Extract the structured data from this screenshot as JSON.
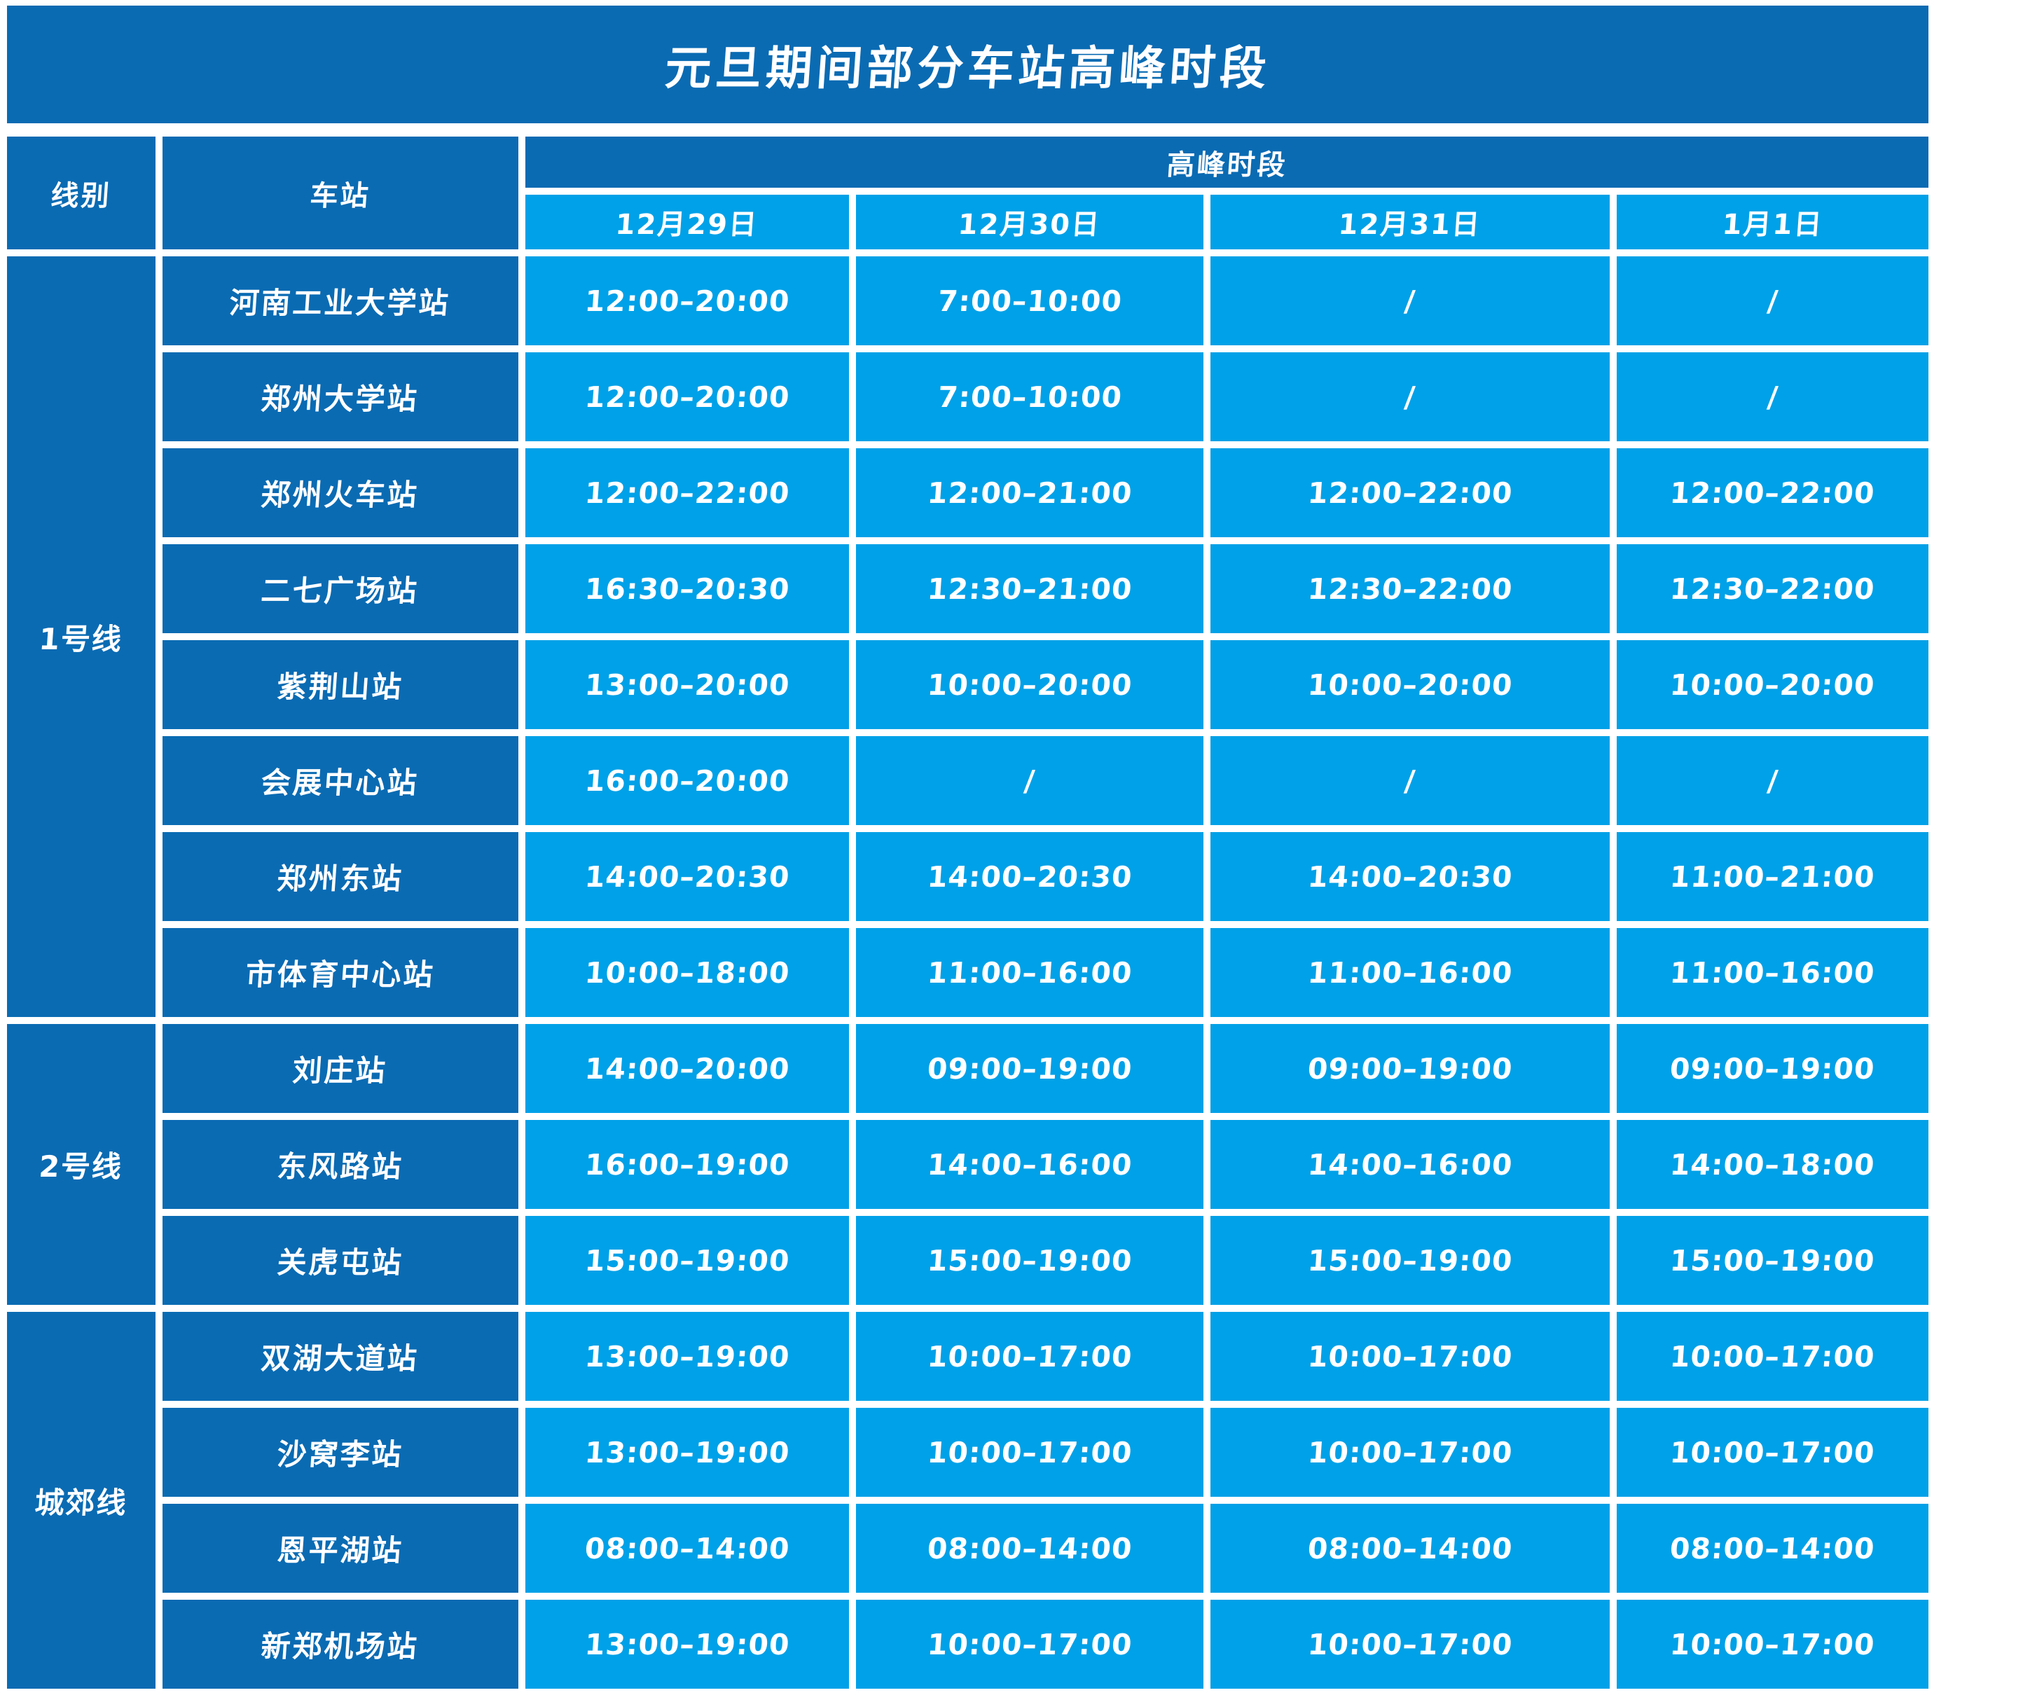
{
  "colors": {
    "dark_blue": "#0a6bb3",
    "light_blue": "#00a1e8",
    "text": "#ffffff",
    "background": "#ffffff"
  },
  "chart_data": {
    "type": "table",
    "title": "元旦期间部分车站高峰时段",
    "header": {
      "line": "线别",
      "station": "车站",
      "peak": "高峰时段",
      "dates": [
        "12月29日",
        "12月30日",
        "12月31日",
        "1月1日"
      ]
    },
    "groups": [
      {
        "line": "1号线",
        "stations": [
          {
            "name": "河南工业大学站",
            "times": [
              "12:00–20:00",
              "7:00–10:00",
              "/",
              "/"
            ]
          },
          {
            "name": "郑州大学站",
            "times": [
              "12:00–20:00",
              "7:00–10:00",
              "/",
              "/"
            ]
          },
          {
            "name": "郑州火车站",
            "times": [
              "12:00–22:00",
              "12:00–21:00",
              "12:00–22:00",
              "12:00–22:00"
            ]
          },
          {
            "name": "二七广场站",
            "times": [
              "16:30–20:30",
              "12:30–21:00",
              "12:30–22:00",
              "12:30–22:00"
            ]
          },
          {
            "name": "紫荆山站",
            "times": [
              "13:00–20:00",
              "10:00–20:00",
              "10:00–20:00",
              "10:00–20:00"
            ]
          },
          {
            "name": "会展中心站",
            "times": [
              "16:00–20:00",
              "/",
              "/",
              "/"
            ]
          },
          {
            "name": "郑州东站",
            "times": [
              "14:00–20:30",
              "14:00–20:30",
              "14:00–20:30",
              "11:00–21:00"
            ]
          },
          {
            "name": "市体育中心站",
            "times": [
              "10:00–18:00",
              "11:00–16:00",
              "11:00–16:00",
              "11:00–16:00"
            ]
          }
        ]
      },
      {
        "line": "2号线",
        "stations": [
          {
            "name": "刘庄站",
            "times": [
              "14:00–20:00",
              "09:00–19:00",
              "09:00–19:00",
              "09:00–19:00"
            ]
          },
          {
            "name": "东风路站",
            "times": [
              "16:00–19:00",
              "14:00–16:00",
              "14:00–16:00",
              "14:00–18:00"
            ]
          },
          {
            "name": "关虎屯站",
            "times": [
              "15:00–19:00",
              "15:00–19:00",
              "15:00–19:00",
              "15:00–19:00"
            ]
          }
        ]
      },
      {
        "line": "城郊线",
        "stations": [
          {
            "name": "双湖大道站",
            "times": [
              "13:00–19:00",
              "10:00–17:00",
              "10:00–17:00",
              "10:00–17:00"
            ]
          },
          {
            "name": "沙窝李站",
            "times": [
              "13:00–19:00",
              "10:00–17:00",
              "10:00–17:00",
              "10:00–17:00"
            ]
          },
          {
            "name": "恩平湖站",
            "times": [
              "08:00–14:00",
              "08:00–14:00",
              "08:00–14:00",
              "08:00–14:00"
            ]
          },
          {
            "name": "新郑机场站",
            "times": [
              "13:00–19:00",
              "10:00–17:00",
              "10:00–17:00",
              "10:00–17:00"
            ]
          }
        ]
      }
    ]
  }
}
